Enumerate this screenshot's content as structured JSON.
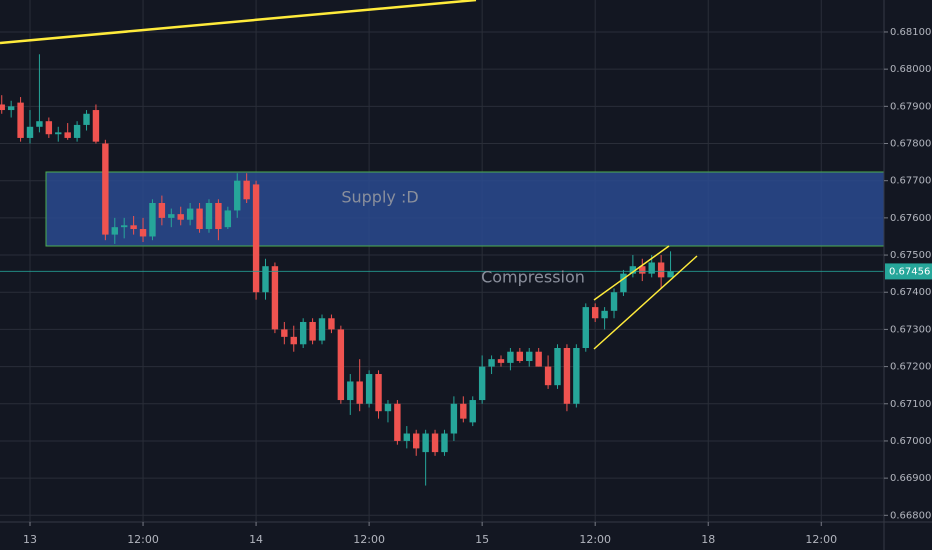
{
  "chart_data": {
    "type": "candlestick",
    "x": [
      -3,
      -2,
      -1,
      0,
      1,
      2,
      3,
      4,
      5,
      6,
      7,
      8,
      9,
      10,
      11,
      12,
      13,
      14,
      15,
      16,
      17,
      18,
      19,
      20,
      21,
      22,
      23,
      24,
      25,
      26,
      27,
      28,
      29,
      30,
      31,
      32,
      33,
      34,
      35,
      36,
      37,
      38,
      39,
      40,
      41,
      42,
      43,
      44,
      45,
      46,
      47,
      48,
      49,
      50,
      51,
      52,
      53,
      54,
      55,
      56,
      57,
      58,
      59,
      60,
      61,
      62,
      63,
      64,
      65,
      66,
      67,
      68
    ],
    "open": [
      0.67905,
      0.6789,
      0.6791,
      0.67815,
      0.67845,
      0.6786,
      0.67825,
      0.6783,
      0.67815,
      0.6785,
      0.6789,
      0.678,
      0.67555,
      0.67575,
      0.6758,
      0.6757,
      0.6755,
      0.6764,
      0.676,
      0.6761,
      0.67595,
      0.67625,
      0.6757,
      0.6764,
      0.67575,
      0.6762,
      0.677,
      0.6769,
      0.674,
      0.6747,
      0.673,
      0.6728,
      0.6726,
      0.6732,
      0.6727,
      0.6733,
      0.673,
      0.6711,
      0.6716,
      0.671,
      0.6718,
      0.6708,
      0.671,
      0.67,
      0.6702,
      0.6697,
      0.6702,
      0.6697,
      0.6702,
      0.671,
      0.6705,
      0.6711,
      0.672,
      0.6722,
      0.6721,
      0.6724,
      0.67215,
      0.6724,
      0.672,
      0.6715,
      0.6725,
      0.671,
      0.6725,
      0.6736,
      0.6733,
      0.6735,
      0.674,
      0.6745,
      0.6747,
      0.6745,
      0.6748,
      0.6744
    ],
    "high": [
      0.6793,
      0.67915,
      0.67925,
      0.6789,
      0.6804,
      0.6787,
      0.67845,
      0.67855,
      0.6786,
      0.6789,
      0.67905,
      0.6781,
      0.676,
      0.676,
      0.67605,
      0.676,
      0.6765,
      0.6766,
      0.67625,
      0.6763,
      0.6764,
      0.6764,
      0.6765,
      0.6765,
      0.6763,
      0.6772,
      0.6772,
      0.677,
      0.6749,
      0.6748,
      0.6732,
      0.6731,
      0.6733,
      0.6733,
      0.6734,
      0.6734,
      0.6731,
      0.6718,
      0.6722,
      0.6719,
      0.6719,
      0.6711,
      0.6711,
      0.6704,
      0.6703,
      0.6703,
      0.6703,
      0.6703,
      0.6712,
      0.6712,
      0.6712,
      0.6723,
      0.6723,
      0.6723,
      0.6725,
      0.6725,
      0.6725,
      0.6725,
      0.6723,
      0.6726,
      0.6726,
      0.6726,
      0.6737,
      0.6737,
      0.6736,
      0.6741,
      0.6746,
      0.675,
      0.6749,
      0.675,
      0.675,
      0.6751
    ],
    "low": [
      0.6788,
      0.6787,
      0.67805,
      0.678,
      0.6783,
      0.67815,
      0.67805,
      0.6781,
      0.67805,
      0.67835,
      0.678,
      0.6754,
      0.6753,
      0.67545,
      0.67555,
      0.67535,
      0.6754,
      0.6758,
      0.67575,
      0.6758,
      0.6758,
      0.6756,
      0.6756,
      0.6754,
      0.6757,
      0.676,
      0.6764,
      0.6738,
      0.6738,
      0.6729,
      0.6726,
      0.6724,
      0.6725,
      0.6726,
      0.6726,
      0.6729,
      0.671,
      0.6707,
      0.6708,
      0.6709,
      0.6706,
      0.6705,
      0.6699,
      0.6698,
      0.6696,
      0.6688,
      0.6696,
      0.6696,
      0.67,
      0.6705,
      0.6704,
      0.671,
      0.6718,
      0.672,
      0.6719,
      0.6721,
      0.672,
      0.672,
      0.6714,
      0.6714,
      0.6708,
      0.6709,
      0.6724,
      0.6732,
      0.673,
      0.6733,
      0.6739,
      0.6744,
      0.6743,
      0.6744,
      0.6741,
      0.6744
    ],
    "close": [
      0.6789,
      0.679,
      0.67815,
      0.67845,
      0.6786,
      0.67825,
      0.6783,
      0.67815,
      0.6785,
      0.6788,
      0.67805,
      0.67555,
      0.67575,
      0.6758,
      0.6757,
      0.6755,
      0.6764,
      0.676,
      0.6761,
      0.67595,
      0.67625,
      0.6757,
      0.6764,
      0.6757,
      0.6762,
      0.677,
      0.6765,
      0.674,
      0.6747,
      0.673,
      0.6728,
      0.6726,
      0.6732,
      0.6727,
      0.6733,
      0.673,
      0.6711,
      0.6716,
      0.671,
      0.6718,
      0.6708,
      0.671,
      0.67,
      0.6702,
      0.6698,
      0.6702,
      0.6697,
      0.6702,
      0.671,
      0.6706,
      0.6711,
      0.672,
      0.6722,
      0.6721,
      0.6724,
      0.67215,
      0.6724,
      0.672,
      0.6715,
      0.6725,
      0.671,
      0.6725,
      0.6736,
      0.6733,
      0.6735,
      0.674,
      0.6745,
      0.6747,
      0.6745,
      0.6748,
      0.6744,
      0.67456
    ],
    "up_color": "#26a69a",
    "down_color": "#ef5350",
    "last_price": 0.67456,
    "xlim": [
      -3.185,
      90.66
    ],
    "ylim": [
      0.66782,
      0.68186
    ],
    "xticks": [
      {
        "value": 0,
        "label": "13"
      },
      {
        "value": 12,
        "label": "12:00"
      },
      {
        "value": 24,
        "label": "14"
      },
      {
        "value": 36,
        "label": "12:00"
      },
      {
        "value": 48,
        "label": "15"
      },
      {
        "value": 60,
        "label": "12:00"
      },
      {
        "value": 72,
        "label": "18"
      },
      {
        "value": 84,
        "label": "12:00"
      }
    ],
    "yticks": [
      {
        "value": 0.668,
        "label": "0.66800"
      },
      {
        "value": 0.669,
        "label": "0.66900"
      },
      {
        "value": 0.67,
        "label": "0.67000"
      },
      {
        "value": 0.671,
        "label": "0.67100"
      },
      {
        "value": 0.672,
        "label": "0.67200"
      },
      {
        "value": 0.673,
        "label": "0.67300"
      },
      {
        "value": 0.674,
        "label": "0.67400"
      },
      {
        "value": 0.675,
        "label": "0.67500"
      },
      {
        "value": 0.676,
        "label": "0.67600"
      },
      {
        "value": 0.677,
        "label": "0.67700"
      },
      {
        "value": 0.678,
        "label": "0.67800"
      },
      {
        "value": 0.679,
        "label": "0.67900"
      },
      {
        "value": 0.68,
        "label": "0.68000"
      },
      {
        "value": 0.681,
        "label": "0.68100"
      }
    ],
    "grid": true,
    "annotations": [
      "Supply :D",
      "Compression"
    ]
  }
}
